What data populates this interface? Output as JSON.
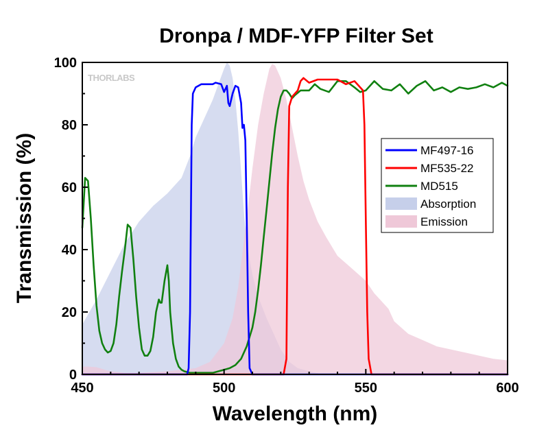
{
  "chart_data": {
    "type": "line",
    "title": "Dronpa / MDF-YFP Filter Set",
    "xlabel": "Wavelength (nm)",
    "ylabel": "Transmission (%)",
    "xlim": [
      450,
      600
    ],
    "ylim": [
      0,
      100
    ],
    "xticks": [
      450,
      500,
      550,
      600
    ],
    "yticks": [
      0,
      20,
      40,
      60,
      80,
      100
    ],
    "legend_position": "right-middle",
    "watermark": "THORLABS",
    "series": [
      {
        "name": "MF497-16",
        "kind": "line",
        "color": "#0000ff",
        "x": [
          450,
          487,
          487.5,
          488,
          488.6,
          489,
          490,
          492,
          494,
          496,
          497,
          499,
          500,
          501,
          501.5,
          502,
          502.5,
          503,
          504,
          505,
          506,
          506.5,
          507,
          507.5,
          508,
          508.5,
          509,
          510,
          600
        ],
        "y": [
          0,
          0,
          2,
          20,
          80,
          90,
          92,
          93,
          93,
          93,
          93.5,
          93,
          90.5,
          92.5,
          87,
          86,
          88,
          90,
          92.5,
          92,
          87,
          79,
          80,
          75,
          50,
          20,
          2,
          0,
          0
        ]
      },
      {
        "name": "MF535-22",
        "kind": "line",
        "color": "#ff0000",
        "x": [
          450,
          521,
          522,
          522.5,
          523,
          524,
          525,
          526,
          527,
          528,
          530,
          533,
          536,
          540,
          543,
          546,
          547,
          548,
          549,
          549.5,
          550,
          550.5,
          551,
          552,
          600
        ],
        "y": [
          0,
          0,
          5,
          60,
          86,
          89,
          90,
          91,
          94,
          95,
          93.5,
          94.5,
          94.5,
          94.5,
          93,
          94,
          93,
          92,
          91,
          80,
          50,
          20,
          5,
          0,
          0
        ]
      },
      {
        "name": "MD515",
        "kind": "line",
        "color": "#108010",
        "x": [
          450,
          451,
          452,
          453,
          454,
          455,
          456,
          457,
          458,
          459,
          460,
          461,
          462,
          463,
          464,
          465,
          466,
          467,
          468,
          469,
          470,
          471,
          472,
          473,
          474,
          475,
          476,
          477,
          477.5,
          478,
          479,
          480,
          480.5,
          481,
          482,
          483,
          484,
          485,
          486,
          488,
          490,
          492,
          494,
          496,
          498,
          500,
          502,
          504,
          506,
          508,
          510,
          511,
          512,
          513,
          514,
          515,
          516,
          517,
          518,
          519,
          520,
          521,
          522,
          523,
          524,
          525,
          527,
          530,
          532,
          534,
          537,
          540,
          543,
          546,
          548,
          550,
          553,
          556,
          559,
          562,
          565,
          568,
          571,
          574,
          577,
          580,
          583,
          586,
          589,
          592,
          595,
          598,
          600
        ],
        "y": [
          47,
          63,
          62,
          50,
          35,
          22,
          14,
          10,
          8,
          7,
          7.5,
          10,
          16,
          25,
          33,
          40,
          48,
          47,
          37,
          25,
          15,
          8,
          6,
          6,
          7.5,
          12,
          20,
          24,
          23,
          23,
          30,
          35,
          30,
          20,
          10,
          5,
          2.5,
          1.5,
          1,
          0.5,
          0.5,
          0.5,
          0.5,
          0.5,
          1,
          1.5,
          2,
          3,
          5,
          9,
          15,
          20,
          27,
          35,
          44,
          53,
          62,
          71,
          79,
          85,
          89,
          91,
          91,
          90,
          88.5,
          89.5,
          91,
          91,
          93,
          91.5,
          90.5,
          94,
          94,
          92,
          90.5,
          91,
          94,
          91.5,
          91,
          93,
          90,
          92.5,
          94,
          91,
          92,
          90.5,
          92,
          91.5,
          92,
          93,
          92,
          93.5,
          92.5
        ]
      },
      {
        "name": "Absorption",
        "kind": "area",
        "color": "#c6cfea",
        "x": [
          450,
          455,
          460,
          465,
          470,
          475,
          480,
          485,
          488,
          490,
          492,
          494,
          496,
          498,
          500,
          501,
          502,
          503,
          504,
          505,
          506,
          507,
          508,
          510,
          512,
          515,
          518,
          520,
          523,
          526,
          530,
          535,
          600
        ],
        "y": [
          16,
          24,
          33,
          42,
          49,
          54,
          58,
          63,
          70,
          76,
          80,
          84,
          88,
          93,
          98,
          100,
          99,
          95,
          88,
          78,
          65,
          52,
          42,
          32,
          25,
          18,
          12,
          8,
          4,
          2,
          1,
          0,
          0
        ]
      },
      {
        "name": "Emission",
        "kind": "area",
        "color": "#efc8d8",
        "x": [
          450,
          452,
          455,
          458,
          460,
          465,
          470,
          480,
          490,
          495,
          500,
          503,
          505,
          508,
          510,
          512,
          514,
          516,
          517,
          518,
          520,
          522,
          524,
          526,
          528,
          530,
          533,
          536,
          540,
          545,
          550,
          553,
          555,
          558,
          560,
          565,
          570,
          575,
          580,
          585,
          590,
          595,
          600
        ],
        "y": [
          2.5,
          2.5,
          2.3,
          1.5,
          1,
          0.5,
          0.5,
          1,
          2,
          4,
          10,
          18,
          28,
          50,
          66,
          80,
          90,
          98,
          99.5,
          99,
          95,
          88,
          79,
          70,
          62,
          56,
          49,
          44,
          38,
          34,
          30,
          26,
          24,
          21,
          17,
          13,
          11,
          9,
          8,
          7,
          6,
          5,
          4.5
        ]
      }
    ]
  }
}
